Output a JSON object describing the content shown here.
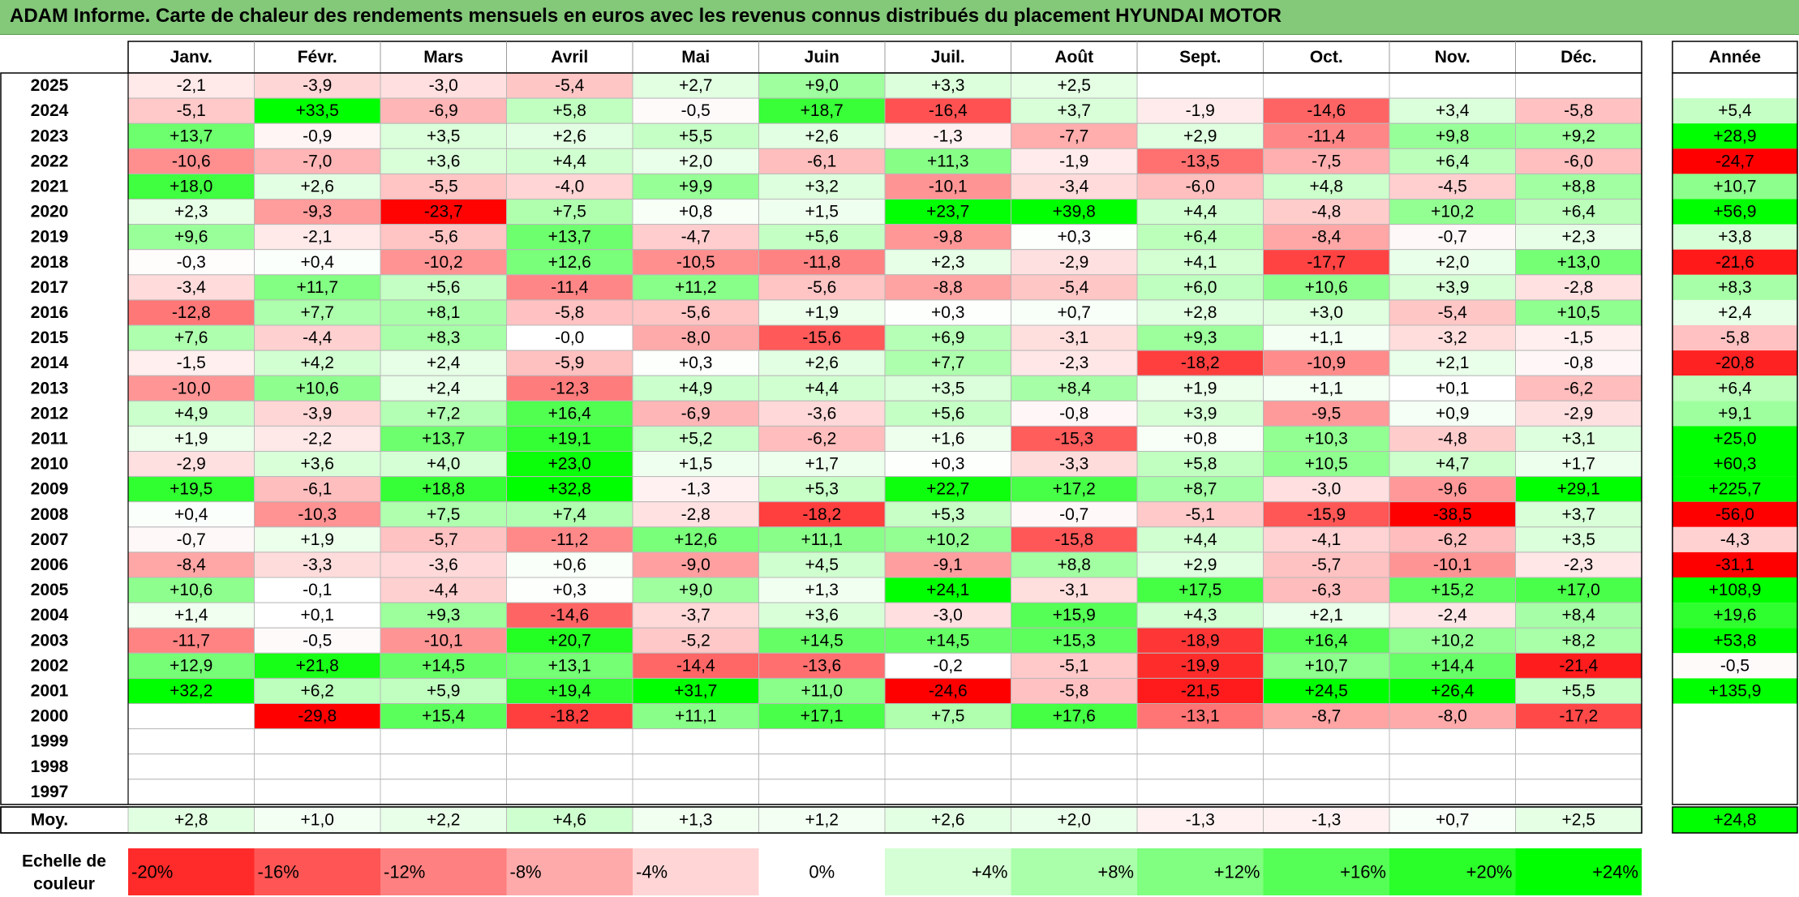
{
  "title": "ADAM Informe. Carte de chaleur des rendements mensuels en euros avec les revenus connus distribués du placement HYUNDAI MOTOR",
  "chart_data": {
    "type": "heatmap",
    "columns": [
      "Janv.",
      "Févr.",
      "Mars",
      "Avril",
      "Mai",
      "Juin",
      "Juil.",
      "Août",
      "Sept.",
      "Oct.",
      "Nov.",
      "Déc."
    ],
    "year_header": "Année",
    "rows": [
      {
        "label": "2025",
        "values": [
          "-2,1",
          "-3,9",
          "-3,0",
          "-5,4",
          "+2,7",
          "+9,0",
          "+3,3",
          "+2,5",
          "",
          "",
          "",
          ""
        ],
        "year": ""
      },
      {
        "label": "2024",
        "values": [
          "-5,1",
          "+33,5",
          "-6,9",
          "+5,8",
          "-0,5",
          "+18,7",
          "-16,4",
          "+3,7",
          "-1,9",
          "-14,6",
          "+3,4",
          "-5,8"
        ],
        "year": "+5,4"
      },
      {
        "label": "2023",
        "values": [
          "+13,7",
          "-0,9",
          "+3,5",
          "+2,6",
          "+5,5",
          "+2,6",
          "-1,3",
          "-7,7",
          "+2,9",
          "-11,4",
          "+9,8",
          "+9,2"
        ],
        "year": "+28,9"
      },
      {
        "label": "2022",
        "values": [
          "-10,6",
          "-7,0",
          "+3,6",
          "+4,4",
          "+2,0",
          "-6,1",
          "+11,3",
          "-1,9",
          "-13,5",
          "-7,5",
          "+6,4",
          "-6,0"
        ],
        "year": "-24,7"
      },
      {
        "label": "2021",
        "values": [
          "+18,0",
          "+2,6",
          "-5,5",
          "-4,0",
          "+9,9",
          "+3,2",
          "-10,1",
          "-3,4",
          "-6,0",
          "+4,8",
          "-4,5",
          "+8,8"
        ],
        "year": "+10,7"
      },
      {
        "label": "2020",
        "values": [
          "+2,3",
          "-9,3",
          "-23,7",
          "+7,5",
          "+0,8",
          "+1,5",
          "+23,7",
          "+39,8",
          "+4,4",
          "-4,8",
          "+10,2",
          "+6,4"
        ],
        "year": "+56,9"
      },
      {
        "label": "2019",
        "values": [
          "+9,6",
          "-2,1",
          "-5,6",
          "+13,7",
          "-4,7",
          "+5,6",
          "-9,8",
          "+0,3",
          "+6,4",
          "-8,4",
          "-0,7",
          "+2,3"
        ],
        "year": "+3,8"
      },
      {
        "label": "2018",
        "values": [
          "-0,3",
          "+0,4",
          "-10,2",
          "+12,6",
          "-10,5",
          "-11,8",
          "+2,3",
          "-2,9",
          "+4,1",
          "-17,7",
          "+2,0",
          "+13,0"
        ],
        "year": "-21,6"
      },
      {
        "label": "2017",
        "values": [
          "-3,4",
          "+11,7",
          "+5,6",
          "-11,4",
          "+11,2",
          "-5,6",
          "-8,8",
          "-5,4",
          "+6,0",
          "+10,6",
          "+3,9",
          "-2,8"
        ],
        "year": "+8,3"
      },
      {
        "label": "2016",
        "values": [
          "-12,8",
          "+7,7",
          "+8,1",
          "-5,8",
          "-5,6",
          "+1,9",
          "+0,3",
          "+0,7",
          "+2,8",
          "+3,0",
          "-5,4",
          "+10,5"
        ],
        "year": "+2,4"
      },
      {
        "label": "2015",
        "values": [
          "+7,6",
          "-4,4",
          "+8,3",
          "-0,0",
          "-8,0",
          "-15,6",
          "+6,9",
          "-3,1",
          "+9,3",
          "+1,1",
          "-3,2",
          "-1,5"
        ],
        "year": "-5,8"
      },
      {
        "label": "2014",
        "values": [
          "-1,5",
          "+4,2",
          "+2,4",
          "-5,9",
          "+0,3",
          "+2,6",
          "+7,7",
          "-2,3",
          "-18,2",
          "-10,9",
          "+2,1",
          "-0,8"
        ],
        "year": "-20,8"
      },
      {
        "label": "2013",
        "values": [
          "-10,0",
          "+10,6",
          "+2,4",
          "-12,3",
          "+4,9",
          "+4,4",
          "+3,5",
          "+8,4",
          "+1,9",
          "+1,1",
          "+0,1",
          "-6,2"
        ],
        "year": "+6,4"
      },
      {
        "label": "2012",
        "values": [
          "+4,9",
          "-3,9",
          "+7,2",
          "+16,4",
          "-6,9",
          "-3,6",
          "+5,6",
          "-0,8",
          "+3,9",
          "-9,5",
          "+0,9",
          "-2,9"
        ],
        "year": "+9,1"
      },
      {
        "label": "2011",
        "values": [
          "+1,9",
          "-2,2",
          "+13,7",
          "+19,1",
          "+5,2",
          "-6,2",
          "+1,6",
          "-15,3",
          "+0,8",
          "+10,3",
          "-4,8",
          "+3,1"
        ],
        "year": "+25,0"
      },
      {
        "label": "2010",
        "values": [
          "-2,9",
          "+3,6",
          "+4,0",
          "+23,0",
          "+1,5",
          "+1,7",
          "+0,3",
          "-3,3",
          "+5,8",
          "+10,5",
          "+4,7",
          "+1,7"
        ],
        "year": "+60,3"
      },
      {
        "label": "2009",
        "values": [
          "+19,5",
          "-6,1",
          "+18,8",
          "+32,8",
          "-1,3",
          "+5,3",
          "+22,7",
          "+17,2",
          "+8,7",
          "-3,0",
          "-9,6",
          "+29,1"
        ],
        "year": "+225,7"
      },
      {
        "label": "2008",
        "values": [
          "+0,4",
          "-10,3",
          "+7,5",
          "+7,4",
          "-2,8",
          "-18,2",
          "+5,3",
          "-0,7",
          "-5,1",
          "-15,9",
          "-38,5",
          "+3,7"
        ],
        "year": "-56,0"
      },
      {
        "label": "2007",
        "values": [
          "-0,7",
          "+1,9",
          "-5,7",
          "-11,2",
          "+12,6",
          "+11,1",
          "+10,2",
          "-15,8",
          "+4,4",
          "-4,1",
          "-6,2",
          "+3,5"
        ],
        "year": "-4,3"
      },
      {
        "label": "2006",
        "values": [
          "-8,4",
          "-3,3",
          "-3,6",
          "+0,6",
          "-9,0",
          "+4,5",
          "-9,1",
          "+8,8",
          "+2,9",
          "-5,7",
          "-10,1",
          "-2,3"
        ],
        "year": "-31,1"
      },
      {
        "label": "2005",
        "values": [
          "+10,6",
          "-0,1",
          "-4,4",
          "+0,3",
          "+9,0",
          "+1,3",
          "+24,1",
          "-3,1",
          "+17,5",
          "-6,3",
          "+15,2",
          "+17,0"
        ],
        "year": "+108,9"
      },
      {
        "label": "2004",
        "values": [
          "+1,4",
          "+0,1",
          "+9,3",
          "-14,6",
          "-3,7",
          "+3,6",
          "-3,0",
          "+15,9",
          "+4,3",
          "+2,1",
          "-2,4",
          "+8,4"
        ],
        "year": "+19,6"
      },
      {
        "label": "2003",
        "values": [
          "-11,7",
          "-0,5",
          "-10,1",
          "+20,7",
          "-5,2",
          "+14,5",
          "+14,5",
          "+15,3",
          "-18,9",
          "+16,4",
          "+10,2",
          "+8,2"
        ],
        "year": "+53,8"
      },
      {
        "label": "2002",
        "values": [
          "+12,9",
          "+21,8",
          "+14,5",
          "+13,1",
          "-14,4",
          "-13,6",
          "-0,2",
          "-5,1",
          "-19,9",
          "+10,7",
          "+14,4",
          "-21,4"
        ],
        "year": "-0,5"
      },
      {
        "label": "2001",
        "values": [
          "+32,2",
          "+6,2",
          "+5,9",
          "+19,4",
          "+31,7",
          "+11,0",
          "-24,6",
          "-5,8",
          "-21,5",
          "+24,5",
          "+26,4",
          "+5,5"
        ],
        "year": "+135,9"
      },
      {
        "label": "2000",
        "values": [
          "",
          "-29,8",
          "+15,4",
          "-18,2",
          "+11,1",
          "+17,1",
          "+7,5",
          "+17,6",
          "-13,1",
          "-8,7",
          "-8,0",
          "-17,2"
        ],
        "year": ""
      },
      {
        "label": "1999",
        "values": [
          "",
          "",
          "",
          "",
          "",
          "",
          "",
          "",
          "",
          "",
          "",
          ""
        ],
        "year": ""
      },
      {
        "label": "1998",
        "values": [
          "",
          "",
          "",
          "",
          "",
          "",
          "",
          "",
          "",
          "",
          "",
          ""
        ],
        "year": ""
      },
      {
        "label": "1997",
        "values": [
          "",
          "",
          "",
          "",
          "",
          "",
          "",
          "",
          "",
          "",
          "",
          ""
        ],
        "year": ""
      }
    ],
    "average": {
      "label": "Moy.",
      "values": [
        "+2,8",
        "+1,0",
        "+2,2",
        "+4,6",
        "+1,3",
        "+1,2",
        "+2,6",
        "+2,0",
        "-1,3",
        "-1,3",
        "+0,7",
        "+2,5"
      ],
      "year": "+24,8"
    },
    "scale": {
      "label_line1": "Echelle de",
      "label_line2": "couleur",
      "steps": [
        {
          "label": "-20%",
          "value": -20
        },
        {
          "label": "-16%",
          "value": -16
        },
        {
          "label": "-12%",
          "value": -12
        },
        {
          "label": "-8%",
          "value": -8
        },
        {
          "label": "-4%",
          "value": -4
        },
        {
          "label": "0%",
          "value": 0
        },
        {
          "label": "+4%",
          "value": 4
        },
        {
          "label": "+8%",
          "value": 8
        },
        {
          "label": "+12%",
          "value": 12
        },
        {
          "label": "+16%",
          "value": 16
        },
        {
          "label": "+20%",
          "value": 20
        },
        {
          "label": "+24%",
          "value": 24
        }
      ]
    },
    "colors": {
      "negative_max": "#ff0000",
      "neutral": "#ffffff",
      "positive_max": "#00ff00",
      "title_bg": "#84c87a"
    }
  }
}
